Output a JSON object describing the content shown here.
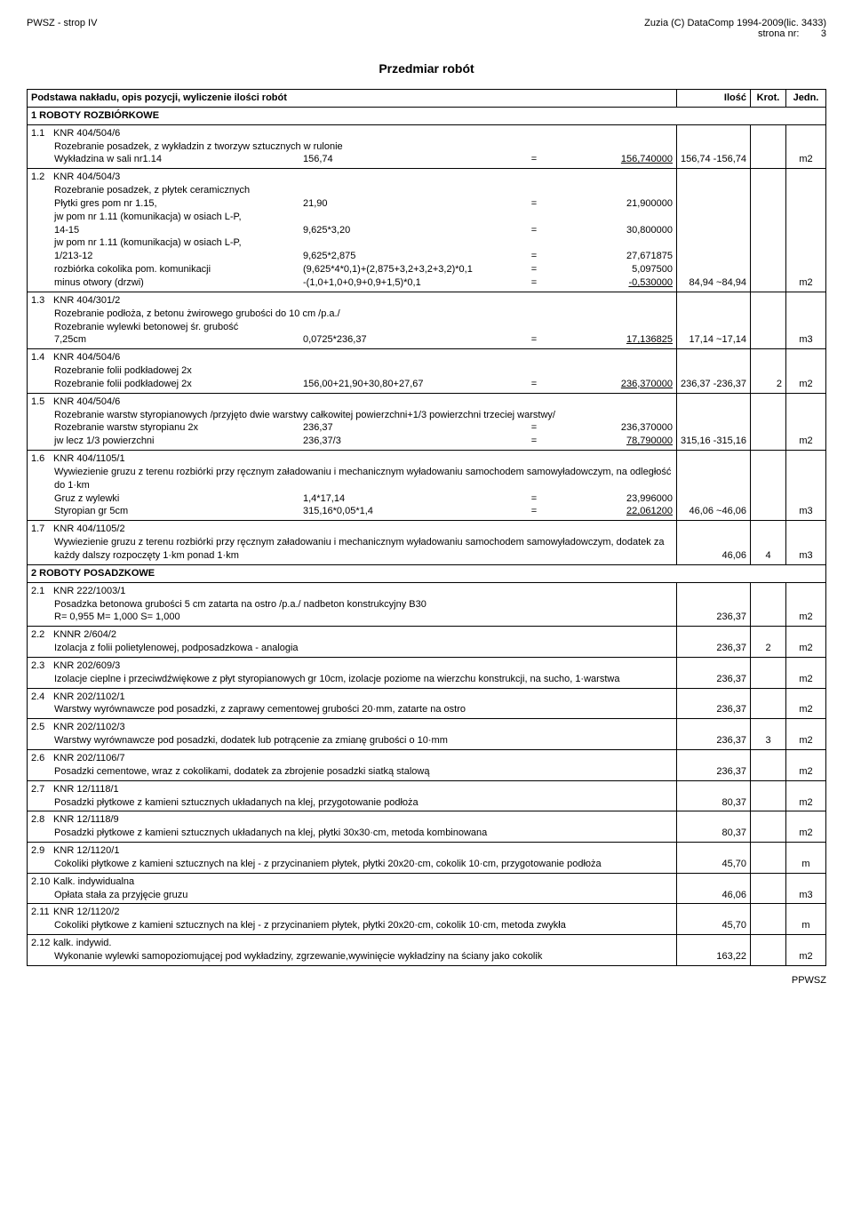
{
  "header": {
    "left": "PWSZ - strop IV",
    "right1": "Zuzia (C) DataComp 1994-2009(lic. 3433)",
    "right2": "strona nr:",
    "page": "3"
  },
  "title": "Przedmiar robót",
  "table": {
    "headers": {
      "desc": "Podstawa nakładu, opis pozycji, wyliczenie ilości robót",
      "qty": "Ilość",
      "krot": "Krot.",
      "jedn": "Jedn."
    }
  },
  "sections": [
    {
      "num": "1",
      "title": "ROBOTY ROZBIÓRKOWE",
      "rows": [
        {
          "num": "1.1",
          "code": "KNR 404/504/6",
          "desc": "Rozebranie posadzek, z wykładzin z tworzyw sztucznych w rulonie",
          "calcs": [
            {
              "label": "Wykładzina w sali nr1.14",
              "expr": "156,74",
              "eq": "=",
              "val": "156,740000",
              "u": true
            }
          ],
          "qty": "156,74",
          "krot": "-156,74",
          "jedn": "m2"
        },
        {
          "num": "1.2",
          "code": "KNR 404/504/3",
          "desc": "Rozebranie posadzek, z płytek ceramicznych",
          "calcs": [
            {
              "label": "Płytki gres pom nr 1.15,",
              "expr": "21,90",
              "eq": "=",
              "val": "21,900000"
            },
            {
              "label": "jw pom nr 1.11 (komunikacja) w osiach L-P,",
              "expr": "",
              "eq": "",
              "val": ""
            },
            {
              "label": "14-15",
              "expr": "9,625*3,20",
              "eq": "=",
              "val": "30,800000"
            },
            {
              "label": "jw pom nr 1.11 (komunikacja) w osiach L-P,",
              "expr": "",
              "eq": "",
              "val": ""
            },
            {
              "label": "1/213-12",
              "expr": "9,625*2,875",
              "eq": "=",
              "val": "27,671875"
            },
            {
              "label": "rozbiórka cokolika pom. komunikacji",
              "expr": "(9,625*4*0,1)+(2,875+3,2+3,2+3,2)*0,1",
              "eq": "=",
              "val": "5,097500"
            },
            {
              "label": "minus otwory (drzwi)",
              "expr": "-(1,0+1,0+0,9+0,9+1,5)*0,1",
              "eq": "=",
              "val": "-0,530000",
              "u": true
            }
          ],
          "qty": "84,94",
          "krot": "~84,94",
          "jedn": "m2"
        },
        {
          "num": "1.3",
          "code": "KNR 404/301/2",
          "desc": "Rozebranie podłoża, z betonu żwirowego grubości do 10 cm /p.a./",
          "desc2": "Rozebranie wylewki betonowej śr. grubość",
          "calcs": [
            {
              "label": "7,25cm",
              "expr": "0,0725*236,37",
              "eq": "=",
              "val": "17,136825",
              "u": true
            }
          ],
          "qty": "17,14",
          "krot": "~17,14",
          "jedn": "m3"
        },
        {
          "num": "1.4",
          "code": "KNR 404/504/6",
          "desc": "Rozebranie folii podkładowej 2x",
          "calcs": [
            {
              "label": "Rozebranie folii podkładowej 2x",
              "expr": "156,00+21,90+30,80+27,67",
              "eq": "=",
              "val": "236,370000",
              "u": true
            }
          ],
          "qty": "236,37",
          "krot": "-236,37",
          "krot2": "2",
          "jedn": "m2"
        },
        {
          "num": "1.5",
          "code": "KNR 404/504/6",
          "desc": "Rozebranie warstw styropianowych /przyjęto dwie warstwy całkowitej powierzchni+1/3 powierzchni trzeciej warstwy/",
          "calcs": [
            {
              "label": "Rozebranie warstw styropianu 2x",
              "expr": "236,37",
              "eq": "=",
              "val": "236,370000"
            },
            {
              "label": "jw lecz 1/3 powierzchni",
              "expr": "236,37/3",
              "eq": "=",
              "val": "78,790000",
              "u": true
            }
          ],
          "qty": "315,16",
          "krot": "-315,16",
          "jedn": "m2"
        },
        {
          "num": "1.6",
          "code": "KNR 404/1105/1",
          "desc": "Wywiezienie gruzu z terenu rozbiórki przy ręcznym załadowaniu i mechanicznym wyładowaniu samochodem samowyładowczym, na odległość do 1·km",
          "calcs": [
            {
              "label": "Gruz z wylewki",
              "expr": "1,4*17,14",
              "eq": "=",
              "val": "23,996000"
            },
            {
              "label": "Styropian gr 5cm",
              "expr": "315,16*0,05*1,4",
              "eq": "=",
              "val": "22,061200",
              "u": true
            }
          ],
          "qty": "46,06",
          "krot": "~46,06",
          "jedn": "m3"
        },
        {
          "num": "1.7",
          "code": "KNR 404/1105/2",
          "desc": "Wywiezienie gruzu z terenu rozbiórki przy ręcznym załadowaniu i mechanicznym wyładowaniu samochodem samowyładowczym, dodatek za każdy dalszy rozpoczęty 1·km ponad 1·km",
          "qty": "46,06",
          "krot2": "4",
          "jedn": "m3"
        }
      ]
    },
    {
      "num": "2",
      "title": "ROBOTY POSADZKOWE",
      "rows": [
        {
          "num": "2.1",
          "code": "KNR 222/1003/1",
          "desc": "Posadzka betonowa grubości 5 cm zatarta na ostro /p.a./ nadbeton konstrukcyjny B30",
          "desc2": "R= 0,955   M= 1,000   S= 1,000",
          "qty": "236,37",
          "jedn": "m2"
        },
        {
          "num": "2.2",
          "code": "KNNR 2/604/2",
          "desc": "Izolacja z folii polietylenowej, podposadzkowa - analogia",
          "qty": "236,37",
          "krot2": "2",
          "jedn": "m2"
        },
        {
          "num": "2.3",
          "code": "KNR 202/609/3",
          "desc": "Izolacje cieplne i przeciwdźwiękowe z płyt styropianowych gr 10cm, izolacje poziome na wierzchu konstrukcji, na sucho, 1·warstwa",
          "qty": "236,37",
          "jedn": "m2"
        },
        {
          "num": "2.4",
          "code": "KNR 202/1102/1",
          "desc": "Warstwy wyrównawcze pod posadzki, z zaprawy cementowej grubości 20·mm, zatarte na ostro",
          "qty": "236,37",
          "jedn": "m2"
        },
        {
          "num": "2.5",
          "code": "KNR 202/1102/3",
          "desc": "Warstwy wyrównawcze pod posadzki, dodatek lub potrącenie za zmianę grubości o 10·mm",
          "qty": "236,37",
          "krot2": "3",
          "jedn": "m2"
        },
        {
          "num": "2.6",
          "code": "KNR 202/1106/7",
          "desc": "Posadzki cementowe, wraz z cokolikami, dodatek za zbrojenie posadzki siatką stalową",
          "qty": "236,37",
          "jedn": "m2"
        },
        {
          "num": "2.7",
          "code": "KNR 12/1118/1",
          "desc": "Posadzki płytkowe z kamieni sztucznych układanych na klej, przygotowanie podłoża",
          "qty": "80,37",
          "jedn": "m2"
        },
        {
          "num": "2.8",
          "code": "KNR 12/1118/9",
          "desc": "Posadzki płytkowe z kamieni sztucznych układanych na klej, płytki 30x30·cm, metoda kombinowana",
          "qty": "80,37",
          "jedn": "m2"
        },
        {
          "num": "2.9",
          "code": "KNR 12/1120/1",
          "desc": "Cokoliki płytkowe z kamieni sztucznych na klej - z przycinaniem płytek, płytki 20x20·cm, cokolik 10·cm, przygotowanie podłoża",
          "qty": "45,70",
          "jedn": "m"
        },
        {
          "num": "2.10",
          "code": "Kalk. indywidualna",
          "desc": "Opłata stała za przyjęcie gruzu",
          "qty": "46,06",
          "jedn": "m3"
        },
        {
          "num": "2.11",
          "code": "KNR 12/1120/2",
          "desc": "Cokoliki płytkowe z kamieni sztucznych na klej - z przycinaniem płytek, płytki 20x20·cm, cokolik 10·cm, metoda zwykła",
          "qty": "45,70",
          "jedn": "m"
        },
        {
          "num": "2.12",
          "code": "kalk. indywid.",
          "desc": "Wykonanie wylewki samopoziomującej pod wykładziny, zgrzewanie,wywinięcie wykładziny na ściany jako cokolik",
          "qty": "163,22",
          "jedn": "m2"
        }
      ]
    }
  ],
  "footer": "PPWSZ"
}
